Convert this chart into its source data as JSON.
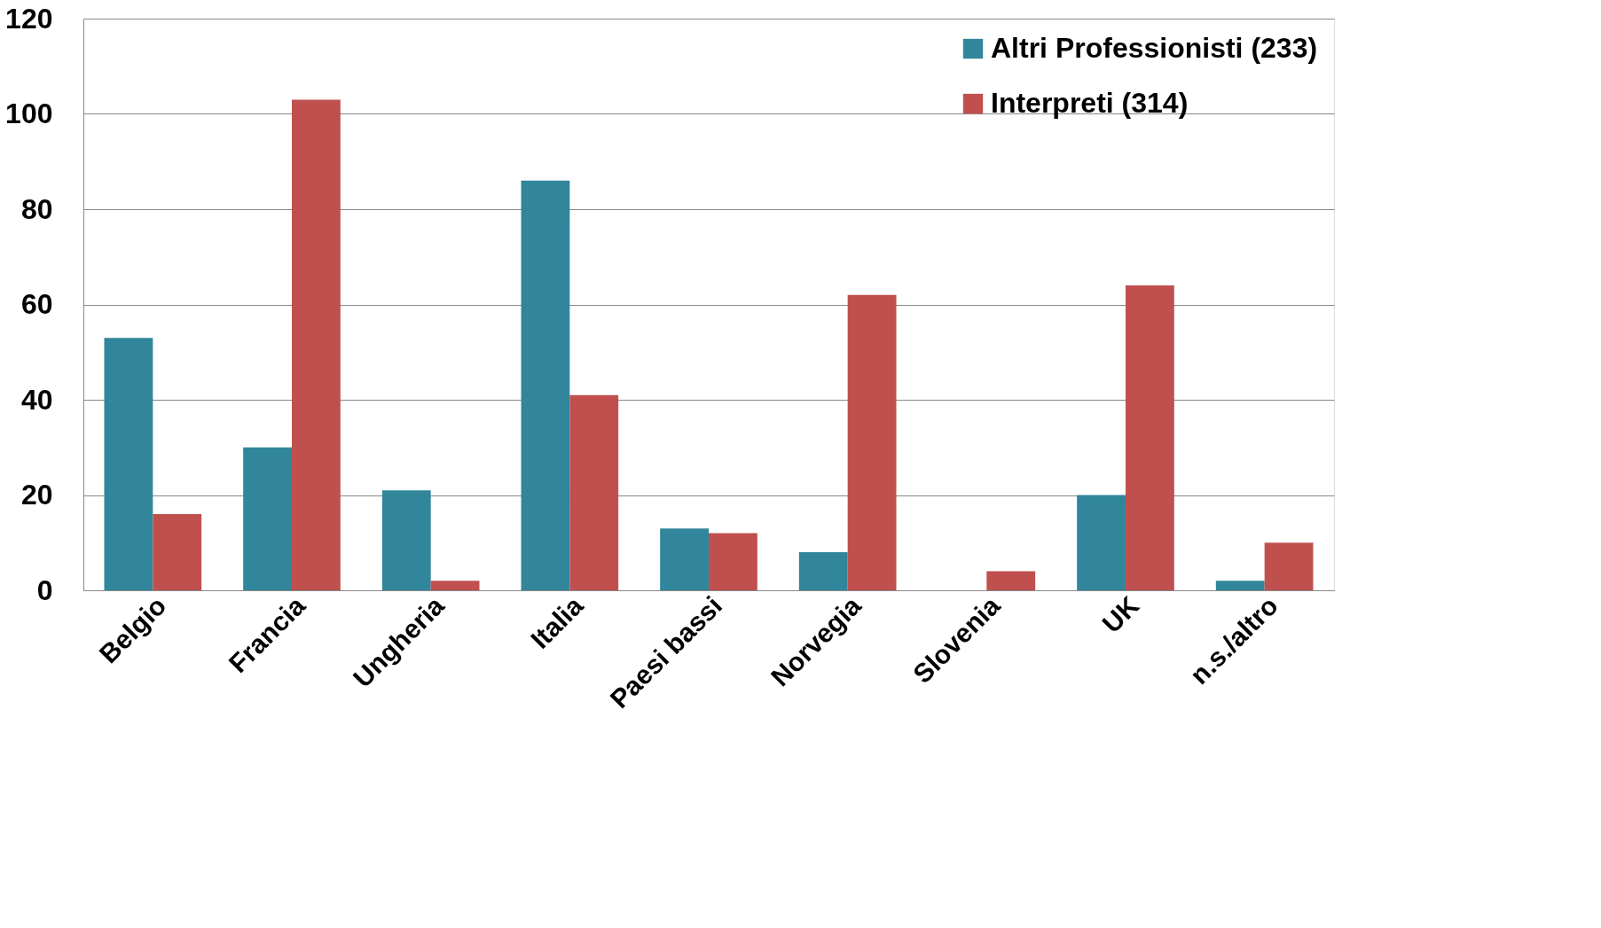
{
  "chart_data": {
    "type": "bar",
    "categories": [
      "Belgio",
      "Francia",
      "Ungheria",
      "Italia",
      "Paesi bassi",
      "Norvegia",
      "Slovenia",
      "UK",
      "n.s./altro"
    ],
    "series": [
      {
        "name": "Altri Professionisti (233)",
        "color": "#31869b",
        "values": [
          53,
          30,
          21,
          86,
          13,
          8,
          0,
          20,
          2
        ]
      },
      {
        "name": "Interpreti (314)",
        "color": "#c0504d",
        "values": [
          16,
          103,
          2,
          41,
          12,
          62,
          4,
          64,
          10
        ]
      }
    ],
    "ylim": [
      0,
      120
    ],
    "yticks": [
      0,
      20,
      40,
      60,
      80,
      100,
      120
    ],
    "grid": "y",
    "legend": "top right"
  }
}
